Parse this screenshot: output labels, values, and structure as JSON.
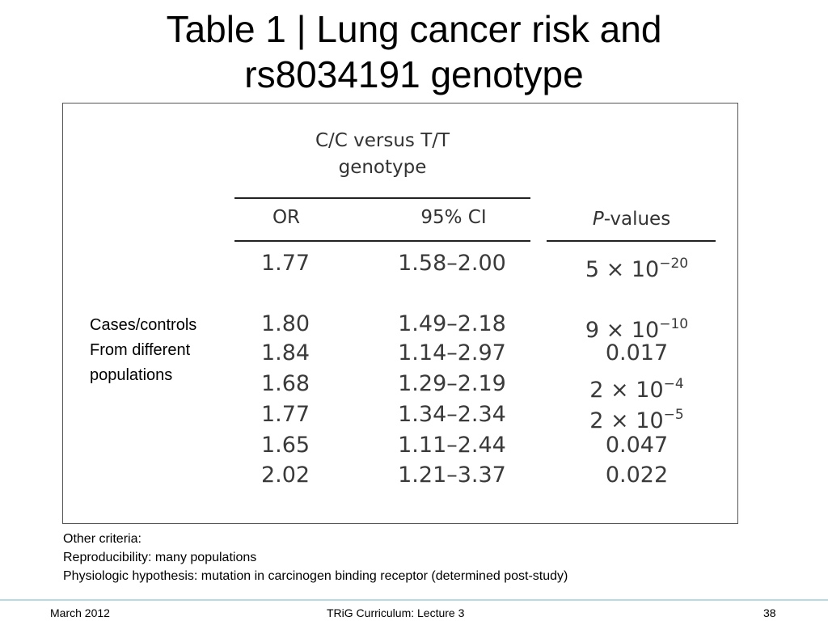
{
  "title": {
    "line1": "Table 1 | Lung cancer risk and",
    "line2": "rs8034191 genotype"
  },
  "table": {
    "group_header_line1": "C/C versus T/T",
    "group_header_line2": "genotype",
    "col_or": "OR",
    "col_ci": "95% CI",
    "col_p_italic": "P",
    "col_p_rest": "-values",
    "rows": [
      {
        "or": "1.77",
        "ci": "1.58–2.00",
        "p_base": "5 × 10",
        "p_exp": "−20"
      },
      {
        "or": "1.80",
        "ci": "1.49–2.18",
        "p_base": "9 × 10",
        "p_exp": "−10"
      },
      {
        "or": "1.84",
        "ci": "1.14–2.97",
        "p_base": "0.017",
        "p_exp": ""
      },
      {
        "or": "1.68",
        "ci": "1.29–2.19",
        "p_base": "2 × 10",
        "p_exp": "−4"
      },
      {
        "or": "1.77",
        "ci": "1.34–2.34",
        "p_base": "2 × 10",
        "p_exp": "−5"
      },
      {
        "or": "1.65",
        "ci": "1.11–2.44",
        "p_base": "0.047",
        "p_exp": ""
      },
      {
        "or": "2.02",
        "ci": "1.21–3.37",
        "p_base": "0.022",
        "p_exp": ""
      }
    ]
  },
  "side_note": {
    "line1": "Cases/controls",
    "line2": "From different",
    "line3": "populations"
  },
  "notes": {
    "line1": "Other criteria:",
    "line2": "Reproducibility:  many populations",
    "line3": "Physiologic hypothesis:  mutation in carcinogen binding receptor (determined post-study)"
  },
  "footer": {
    "date": "March 2012",
    "center": "TRiG Curriculum: Lecture 3",
    "page": "38"
  },
  "colors": {
    "footer_rule": "#b7dbe3",
    "table_text": "#3a3a3a"
  }
}
